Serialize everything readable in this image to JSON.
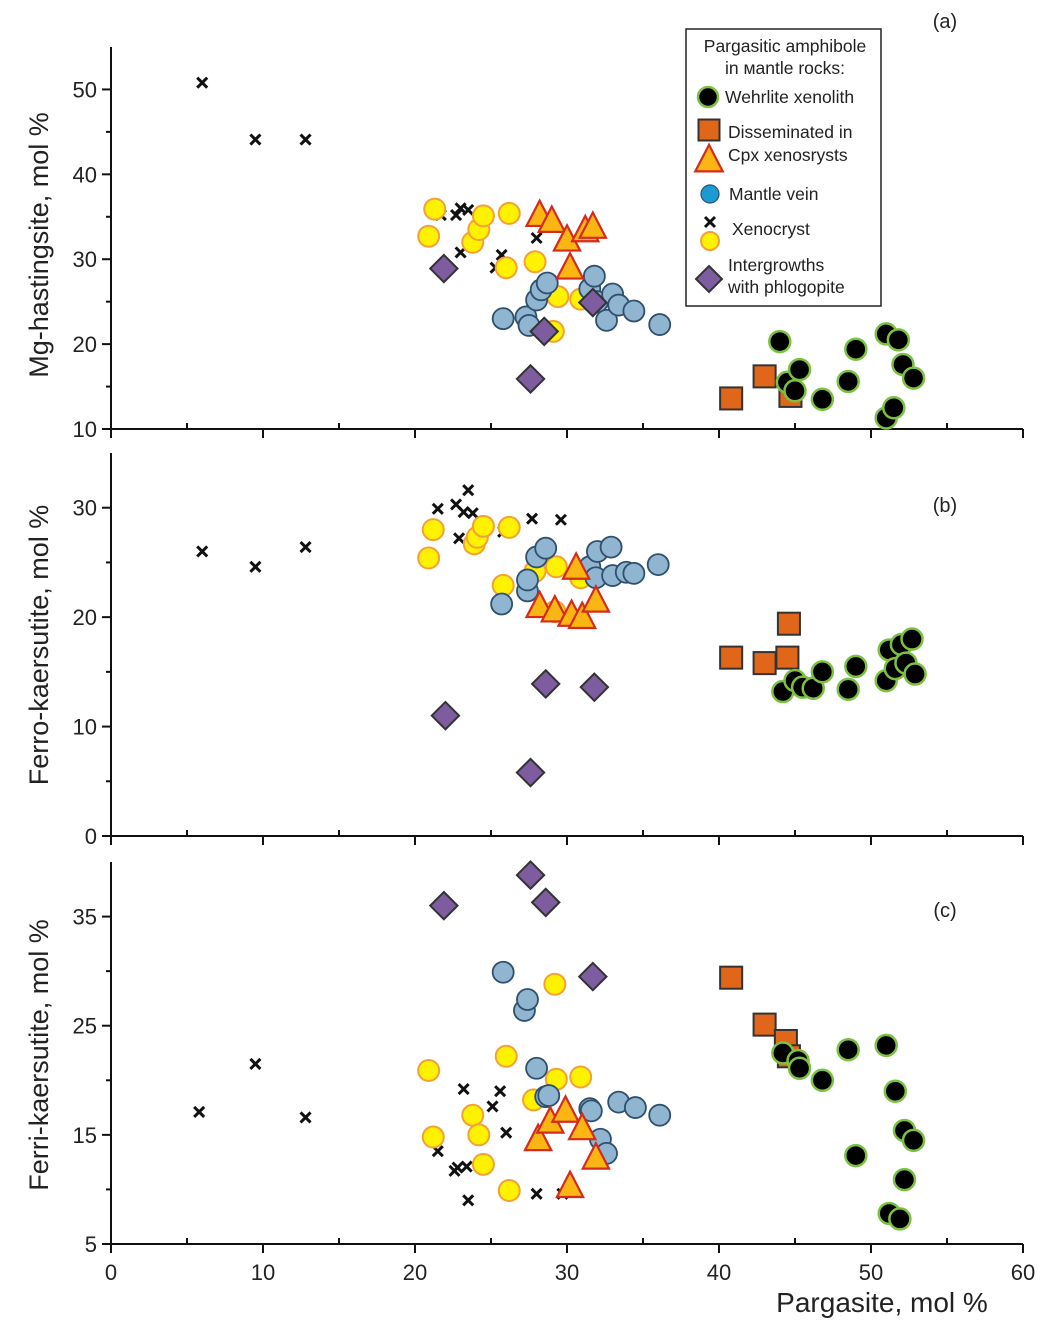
{
  "chart_data": [
    {
      "panel": "a",
      "type": "scatter",
      "panel_label": "(a)",
      "xlabel": "",
      "ylabel": "Mg-hastingsite, mol %",
      "xlim": [
        0,
        60
      ],
      "ylim": [
        10,
        55
      ],
      "yticks": [
        10,
        20,
        30,
        40,
        50
      ],
      "series": [
        {
          "name": "Wehrlite xenolith",
          "key": "wehrlite",
          "points": [
            [
              44.0,
              20.3
            ],
            [
              44.5,
              15.5
            ],
            [
              45.0,
              14.5
            ],
            [
              45.3,
              17.0
            ],
            [
              46.8,
              13.5
            ],
            [
              48.5,
              15.6
            ],
            [
              49.0,
              19.4
            ],
            [
              51.0,
              11.3
            ],
            [
              51.0,
              21.2
            ],
            [
              51.5,
              12.5
            ],
            [
              51.8,
              20.5
            ],
            [
              52.1,
              17.6
            ],
            [
              52.8,
              16.0
            ]
          ]
        },
        {
          "name": "Disseminated in Cpx xenosrysts (squares)",
          "key": "diss_square",
          "points": [
            [
              40.8,
              13.6
            ],
            [
              43.0,
              16.2
            ],
            [
              44.7,
              13.9
            ]
          ]
        },
        {
          "name": "Disseminated in Cpx xenosrysts (triangles)",
          "key": "diss_triangle",
          "points": [
            [
              28.2,
              35.2
            ],
            [
              29.0,
              34.5
            ],
            [
              30.0,
              32.3
            ],
            [
              30.2,
              29.0
            ],
            [
              31.2,
              33.4
            ],
            [
              31.7,
              33.8
            ]
          ]
        },
        {
          "name": "Mantle vein",
          "key": "vein",
          "points": [
            [
              25.8,
              23.0
            ],
            [
              27.3,
              23.2
            ],
            [
              27.5,
              22.2
            ],
            [
              28.0,
              25.2
            ],
            [
              28.3,
              26.4
            ],
            [
              28.7,
              27.2
            ],
            [
              31.5,
              26.5
            ],
            [
              31.8,
              28.0
            ],
            [
              32.0,
              25.0
            ],
            [
              32.6,
              22.8
            ],
            [
              33.0,
              25.9
            ],
            [
              33.4,
              24.6
            ],
            [
              34.4,
              23.9
            ],
            [
              36.1,
              22.3
            ]
          ]
        },
        {
          "name": "Xenocryst",
          "key": "xenocryst",
          "points": [
            [
              6.0,
              50.8
            ],
            [
              9.5,
              44.1
            ],
            [
              12.8,
              44.1
            ],
            [
              21.7,
              35.2
            ],
            [
              22.7,
              35.2
            ],
            [
              23.0,
              36.0
            ],
            [
              23.5,
              35.8
            ],
            [
              23.0,
              30.8
            ],
            [
              25.7,
              30.5
            ],
            [
              25.3,
              29.0
            ],
            [
              28.0,
              32.5
            ]
          ]
        },
        {
          "name": "Xenocryst (circles)",
          "key": "xeno_circle",
          "points": [
            [
              20.9,
              32.7
            ],
            [
              21.3,
              35.9
            ],
            [
              23.8,
              32.0
            ],
            [
              24.2,
              33.5
            ],
            [
              24.5,
              35.1
            ],
            [
              26.0,
              29.0
            ],
            [
              26.2,
              35.4
            ],
            [
              27.9,
              29.7
            ],
            [
              29.1,
              21.5
            ],
            [
              29.4,
              25.6
            ],
            [
              30.9,
              25.3
            ]
          ]
        },
        {
          "name": "Intergrowths with phlogopite",
          "key": "phlog",
          "points": [
            [
              21.9,
              28.9
            ],
            [
              27.6,
              15.9
            ],
            [
              28.5,
              21.5
            ],
            [
              31.7,
              24.9
            ]
          ]
        }
      ]
    },
    {
      "panel": "b",
      "type": "scatter",
      "panel_label": "(b)",
      "xlabel": "",
      "ylabel": "Ferro-kaersutite, mol %",
      "xlim": [
        0,
        60
      ],
      "ylim": [
        0,
        35
      ],
      "yticks": [
        0,
        10,
        20,
        30
      ],
      "series": [
        {
          "name": "Wehrlite xenolith",
          "key": "wehrlite",
          "points": [
            [
              44.2,
              13.2
            ],
            [
              45.0,
              14.2
            ],
            [
              45.5,
              13.6
            ],
            [
              46.2,
              13.5
            ],
            [
              46.8,
              15.0
            ],
            [
              48.5,
              13.4
            ],
            [
              49.0,
              15.5
            ],
            [
              51.0,
              14.2
            ],
            [
              51.2,
              17.0
            ],
            [
              51.6,
              15.3
            ],
            [
              52.0,
              17.5
            ],
            [
              52.3,
              15.8
            ],
            [
              52.7,
              18.0
            ],
            [
              52.9,
              14.8
            ]
          ]
        },
        {
          "name": "Disseminated in Cpx xenosrysts (squares)",
          "key": "diss_square",
          "points": [
            [
              40.8,
              16.3
            ],
            [
              43.0,
              15.8
            ],
            [
              44.5,
              16.3
            ],
            [
              44.6,
              19.4
            ]
          ]
        },
        {
          "name": "Disseminated in Cpx xenosrysts (triangles)",
          "key": "diss_triangle",
          "points": [
            [
              28.2,
              21.0
            ],
            [
              29.2,
              20.6
            ],
            [
              30.3,
              20.2
            ],
            [
              30.6,
              24.5
            ],
            [
              31.0,
              20.0
            ],
            [
              31.9,
              21.5
            ]
          ]
        },
        {
          "name": "Mantle vein",
          "key": "vein",
          "points": [
            [
              25.7,
              21.2
            ],
            [
              27.4,
              22.4
            ],
            [
              27.4,
              23.4
            ],
            [
              28.0,
              25.5
            ],
            [
              28.6,
              26.3
            ],
            [
              31.5,
              24.6
            ],
            [
              31.9,
              23.6
            ],
            [
              32.0,
              26.0
            ],
            [
              32.9,
              26.4
            ],
            [
              33.0,
              23.8
            ],
            [
              33.9,
              24.1
            ],
            [
              34.4,
              24.0
            ],
            [
              36.0,
              24.8
            ]
          ]
        },
        {
          "name": "Xenocryst",
          "key": "xenocryst",
          "points": [
            [
              6.0,
              26.0
            ],
            [
              9.5,
              24.6
            ],
            [
              12.8,
              26.4
            ],
            [
              21.5,
              29.9
            ],
            [
              22.7,
              30.3
            ],
            [
              22.9,
              27.2
            ],
            [
              23.2,
              29.6
            ],
            [
              23.8,
              29.5
            ],
            [
              23.5,
              31.6
            ],
            [
              25.8,
              27.8
            ],
            [
              27.7,
              29.0
            ],
            [
              29.6,
              28.9
            ]
          ]
        },
        {
          "name": "Xenocryst (circles)",
          "key": "xeno_circle",
          "points": [
            [
              20.9,
              25.4
            ],
            [
              21.2,
              28.0
            ],
            [
              23.9,
              26.7
            ],
            [
              24.1,
              27.3
            ],
            [
              24.5,
              28.3
            ],
            [
              25.8,
              22.9
            ],
            [
              26.2,
              28.2
            ],
            [
              27.9,
              24.2
            ],
            [
              29.2,
              20.5
            ],
            [
              29.3,
              24.6
            ],
            [
              30.9,
              23.6
            ]
          ]
        },
        {
          "name": "Intergrowths with phlogopite",
          "key": "phlog",
          "points": [
            [
              22.0,
              11.0
            ],
            [
              27.6,
              5.8
            ],
            [
              28.6,
              13.9
            ],
            [
              31.8,
              13.6
            ]
          ]
        }
      ]
    },
    {
      "panel": "c",
      "type": "scatter",
      "panel_label": "(c)",
      "xlabel": "Pargasite, mol %",
      "ylabel": "Ferri-kaersutite, mol %",
      "xlim": [
        0,
        60
      ],
      "ylim": [
        5,
        40
      ],
      "yticks": [
        5,
        15,
        25,
        35
      ],
      "xticks": [
        0,
        10,
        20,
        30,
        40,
        50,
        60
      ],
      "series": [
        {
          "name": "Wehrlite xenolith",
          "key": "wehrlite",
          "points": [
            [
              44.2,
              22.5
            ],
            [
              45.2,
              21.8
            ],
            [
              45.3,
              21.1
            ],
            [
              46.8,
              20.0
            ],
            [
              48.5,
              22.8
            ],
            [
              49.0,
              13.1
            ],
            [
              51.0,
              23.2
            ],
            [
              51.2,
              7.8
            ],
            [
              51.6,
              19.0
            ],
            [
              51.9,
              7.3
            ],
            [
              52.2,
              10.9
            ],
            [
              52.2,
              15.4
            ],
            [
              52.8,
              14.5
            ]
          ]
        },
        {
          "name": "Disseminated in Cpx xenosrysts (squares)",
          "key": "diss_square",
          "points": [
            [
              40.8,
              29.4
            ],
            [
              43.0,
              25.1
            ],
            [
              44.4,
              23.6
            ],
            [
              44.6,
              22.2
            ]
          ]
        },
        {
          "name": "Disseminated in Cpx xenosrysts (triangles)",
          "key": "diss_triangle",
          "points": [
            [
              28.1,
              14.6
            ],
            [
              28.9,
              16.2
            ],
            [
              29.9,
              17.2
            ],
            [
              30.2,
              10.3
            ],
            [
              31.0,
              15.6
            ],
            [
              31.9,
              12.9
            ]
          ]
        },
        {
          "name": "Mantle vein",
          "key": "vein",
          "points": [
            [
              25.8,
              29.9
            ],
            [
              27.2,
              26.4
            ],
            [
              27.4,
              27.4
            ],
            [
              28.0,
              21.1
            ],
            [
              28.6,
              18.5
            ],
            [
              28.8,
              18.6
            ],
            [
              31.5,
              17.4
            ],
            [
              31.6,
              17.2
            ],
            [
              32.2,
              14.6
            ],
            [
              32.6,
              13.3
            ],
            [
              33.4,
              18.0
            ],
            [
              34.5,
              17.5
            ],
            [
              36.1,
              16.8
            ]
          ]
        },
        {
          "name": "Xenocryst",
          "key": "xenocryst",
          "points": [
            [
              5.8,
              17.1
            ],
            [
              9.5,
              21.5
            ],
            [
              12.8,
              16.6
            ],
            [
              21.5,
              13.5
            ],
            [
              22.6,
              11.7
            ],
            [
              22.8,
              12.0
            ],
            [
              23.2,
              19.2
            ],
            [
              23.4,
              12.1
            ],
            [
              23.5,
              9.0
            ],
            [
              25.1,
              17.6
            ],
            [
              25.6,
              19.0
            ],
            [
              26.0,
              15.2
            ],
            [
              28.0,
              9.6
            ],
            [
              29.7,
              9.6
            ]
          ]
        },
        {
          "name": "Xenocryst (circles)",
          "key": "xeno_circle",
          "points": [
            [
              20.9,
              20.9
            ],
            [
              21.2,
              14.8
            ],
            [
              23.8,
              16.8
            ],
            [
              24.2,
              15.0
            ],
            [
              24.5,
              12.3
            ],
            [
              26.0,
              22.2
            ],
            [
              26.2,
              9.9
            ],
            [
              27.8,
              18.2
            ],
            [
              29.2,
              28.8
            ],
            [
              29.3,
              20.1
            ],
            [
              30.9,
              20.3
            ]
          ]
        },
        {
          "name": "Intergrowths with phlogopite",
          "key": "phlog",
          "points": [
            [
              21.9,
              36.0
            ],
            [
              27.6,
              38.8
            ],
            [
              28.6,
              36.3
            ],
            [
              31.7,
              29.5
            ]
          ]
        }
      ]
    }
  ],
  "legend": {
    "title_line1": "Pargasitic amphibole",
    "title_line2": "in мantle rocks:",
    "items": [
      {
        "key": "wehrlite",
        "label": "Wehrlite xenolith"
      },
      {
        "key": "diss_square",
        "label": "Disseminated in"
      },
      {
        "key": "diss_triangle",
        "label": "Cpx xenosrysts"
      },
      {
        "key": "vein",
        "label": "Mantle vein"
      },
      {
        "key": "xenocryst",
        "label": "Xenocryst"
      },
      {
        "key": "xeno_circle",
        "label": ""
      },
      {
        "key": "phlog",
        "label_line1": "Intergrowths",
        "label_line2": "with phlogopite"
      }
    ]
  },
  "colors": {
    "wehrlite_fill": "#000000",
    "wehrlite_stroke": "#7cc242",
    "square_fill": "#e0661a",
    "square_stroke": "#333333",
    "triangle_fill": "#fcb613",
    "triangle_stroke": "#d42b1e",
    "vein_fill": "#8fb5d0",
    "vein_stroke": "#2f4f6e",
    "vein_legend_fill": "#1c9ad6",
    "circle_fill": "#fff200",
    "circle_stroke": "#f4a037",
    "phlog_fill": "#7d5ca0",
    "phlog_stroke": "#333333"
  }
}
